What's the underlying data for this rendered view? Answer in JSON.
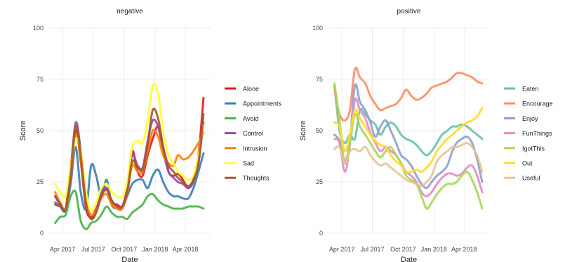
{
  "chart_data": [
    {
      "type": "line",
      "title": "negative",
      "xlabel": "Date",
      "ylabel": "Score",
      "ylim": [
        0,
        100
      ],
      "yticks": [
        0,
        25,
        50,
        75,
        100
      ],
      "xlim": [
        "2017-02-20",
        "2018-06-15"
      ],
      "xticks": [
        {
          "date": "2017-04-01",
          "label": "Apr 2017"
        },
        {
          "date": "2017-07-01",
          "label": "Jul 2017"
        },
        {
          "date": "2017-10-01",
          "label": "Oct 2017"
        },
        {
          "date": "2018-01-01",
          "label": "Jan 2018"
        },
        {
          "date": "2018-04-01",
          "label": "Apr 2018"
        }
      ],
      "grid": true,
      "legend_position": "right",
      "x": [
        "2017-03-10",
        "2017-03-25",
        "2017-04-10",
        "2017-04-25",
        "2017-05-10",
        "2017-05-25",
        "2017-06-10",
        "2017-06-25",
        "2017-07-10",
        "2017-07-25",
        "2017-08-10",
        "2017-08-25",
        "2017-09-10",
        "2017-09-25",
        "2017-10-10",
        "2017-10-25",
        "2017-11-10",
        "2017-11-25",
        "2017-12-10",
        "2017-12-25",
        "2018-01-10",
        "2018-01-25",
        "2018-02-10",
        "2018-02-25",
        "2018-03-10",
        "2018-03-25",
        "2018-04-10",
        "2018-04-25",
        "2018-05-10",
        "2018-05-25"
      ],
      "series": [
        {
          "name": "Alone",
          "color": "#e41a1c",
          "values": [
            14,
            13,
            12,
            32,
            50,
            35,
            12,
            8,
            12,
            18,
            22,
            15,
            14,
            13,
            20,
            40,
            30,
            28,
            38,
            46,
            52,
            42,
            30,
            28,
            29,
            26,
            22,
            26,
            38,
            66
          ]
        },
        {
          "name": "Appointments",
          "color": "#377eb8",
          "values": [
            15,
            13,
            11,
            24,
            42,
            20,
            12,
            33,
            28,
            18,
            26,
            14,
            12,
            12,
            18,
            24,
            26,
            26,
            22,
            28,
            31,
            25,
            20,
            18,
            18,
            17,
            17,
            22,
            30,
            39
          ]
        },
        {
          "name": "Avoid",
          "color": "#4daf4a",
          "values": [
            5,
            8,
            9,
            18,
            20,
            6,
            2,
            5,
            6,
            9,
            13,
            10,
            8,
            8,
            7,
            10,
            12,
            14,
            18,
            19,
            16,
            14,
            13,
            12,
            12,
            12,
            13,
            13,
            13,
            12
          ]
        },
        {
          "name": "Control",
          "color": "#984ea3",
          "values": [
            18,
            14,
            12,
            30,
            54,
            40,
            14,
            7,
            11,
            20,
            22,
            16,
            13,
            13,
            22,
            38,
            33,
            32,
            45,
            55,
            52,
            40,
            30,
            27,
            25,
            24,
            22,
            25,
            34,
            54
          ]
        },
        {
          "name": "Intrusion",
          "color": "#ff7f00",
          "values": [
            20,
            15,
            12,
            28,
            48,
            36,
            15,
            9,
            11,
            17,
            19,
            14,
            12,
            12,
            19,
            33,
            30,
            30,
            40,
            50,
            47,
            38,
            34,
            33,
            38,
            36,
            37,
            40,
            44,
            49
          ]
        },
        {
          "name": "Sad",
          "color": "#ffff33",
          "values": [
            24,
            20,
            18,
            32,
            46,
            40,
            20,
            11,
            15,
            22,
            24,
            20,
            18,
            18,
            25,
            42,
            45,
            44,
            55,
            72,
            68,
            50,
            38,
            34,
            30,
            28,
            26,
            28,
            38,
            53
          ]
        },
        {
          "name": "Thoughts",
          "color": "#a65628",
          "values": [
            18,
            14,
            12,
            28,
            52,
            38,
            14,
            7,
            10,
            18,
            21,
            16,
            13,
            13,
            20,
            35,
            32,
            31,
            43,
            60,
            56,
            42,
            33,
            30,
            27,
            25,
            23,
            26,
            34,
            58
          ]
        }
      ]
    },
    {
      "type": "line",
      "title": "positive",
      "xlabel": "Date",
      "ylabel": "Score",
      "ylim": [
        0,
        100
      ],
      "yticks": [
        0,
        25,
        50,
        75,
        100
      ],
      "xlim": [
        "2017-02-20",
        "2018-06-15"
      ],
      "xticks": [
        {
          "date": "2017-04-01",
          "label": "Apr 2017"
        },
        {
          "date": "2017-07-01",
          "label": "Jul 2017"
        },
        {
          "date": "2017-10-01",
          "label": "Oct 2017"
        },
        {
          "date": "2018-01-01",
          "label": "Jan 2018"
        },
        {
          "date": "2018-04-01",
          "label": "Apr 2018"
        }
      ],
      "grid": true,
      "legend_position": "right",
      "x": [
        "2017-03-10",
        "2017-03-25",
        "2017-04-10",
        "2017-04-25",
        "2017-05-10",
        "2017-05-25",
        "2017-06-10",
        "2017-06-25",
        "2017-07-10",
        "2017-07-25",
        "2017-08-10",
        "2017-08-25",
        "2017-09-10",
        "2017-09-25",
        "2017-10-10",
        "2017-10-25",
        "2017-11-10",
        "2017-11-25",
        "2017-12-10",
        "2017-12-25",
        "2018-01-10",
        "2018-01-25",
        "2018-02-10",
        "2018-02-25",
        "2018-03-10",
        "2018-03-25",
        "2018-04-10",
        "2018-04-25",
        "2018-05-10",
        "2018-05-25"
      ],
      "series": [
        {
          "name": "Eaten",
          "color": "#66c2a5",
          "values": [
            72,
            50,
            44,
            48,
            46,
            60,
            58,
            55,
            53,
            48,
            52,
            54,
            52,
            48,
            46,
            45,
            43,
            40,
            38,
            40,
            44,
            48,
            50,
            52,
            52,
            53,
            52,
            50,
            48,
            46
          ]
        },
        {
          "name": "Encourage",
          "color": "#fc8d62",
          "values": [
            70,
            58,
            55,
            60,
            80,
            76,
            73,
            67,
            63,
            60,
            61,
            62,
            63,
            66,
            70,
            67,
            65,
            66,
            68,
            71,
            72,
            73,
            74,
            76,
            78,
            78,
            77,
            76,
            74,
            73
          ]
        },
        {
          "name": "Enjoy",
          "color": "#8da0cb",
          "values": [
            48,
            45,
            35,
            45,
            72,
            64,
            60,
            54,
            47,
            52,
            55,
            50,
            44,
            38,
            36,
            33,
            28,
            24,
            22,
            25,
            28,
            30,
            33,
            40,
            44,
            46,
            47,
            44,
            36,
            25
          ]
        },
        {
          "name": "FunThings",
          "color": "#e78ac3",
          "values": [
            46,
            44,
            30,
            43,
            65,
            60,
            56,
            49,
            44,
            40,
            42,
            40,
            38,
            34,
            30,
            28,
            25,
            20,
            18,
            20,
            24,
            27,
            29,
            29,
            28,
            29,
            32,
            33,
            28,
            20
          ]
        },
        {
          "name": "IgotThis",
          "color": "#a6d854",
          "values": [
            73,
            55,
            34,
            44,
            58,
            52,
            48,
            44,
            40,
            37,
            40,
            42,
            38,
            34,
            28,
            26,
            24,
            18,
            12,
            15,
            19,
            22,
            24,
            24,
            25,
            28,
            30,
            26,
            20,
            12
          ]
        },
        {
          "name": "Out",
          "color": "#ffd92f",
          "values": [
            54,
            52,
            40,
            48,
            60,
            56,
            52,
            48,
            45,
            43,
            42,
            38,
            35,
            33,
            30,
            30,
            31,
            30,
            32,
            35,
            40,
            43,
            46,
            48,
            50,
            52,
            54,
            55,
            57,
            61
          ]
        },
        {
          "name": "Useful",
          "color": "#e5c494",
          "values": [
            41,
            42,
            34,
            40,
            41,
            40,
            42,
            38,
            35,
            33,
            34,
            32,
            30,
            28,
            26,
            25,
            24,
            23,
            25,
            28,
            35,
            38,
            40,
            42,
            42,
            43,
            44,
            42,
            38,
            30
          ]
        }
      ]
    }
  ]
}
